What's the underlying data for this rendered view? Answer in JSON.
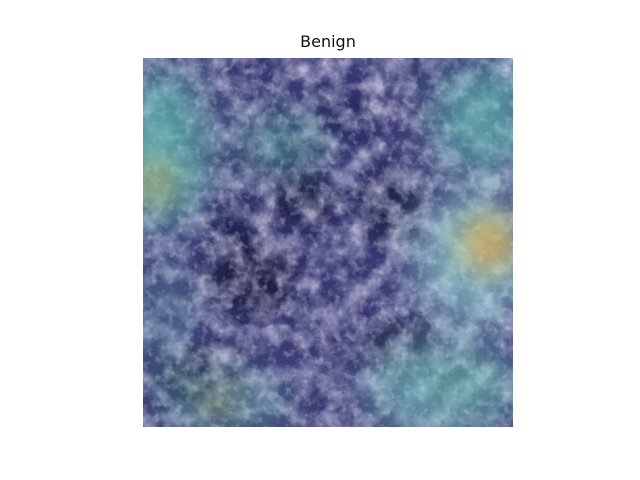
{
  "figure": {
    "title": "Benign"
  },
  "image": {
    "description_icon": "histology-heatmap-image",
    "palette": {
      "base": "#2a2b5a",
      "lavender": "#b7b4e8",
      "dark_navy": "#14163a",
      "teal": "#5fb8b0",
      "cyan": "#9ee4e0",
      "yellow": "#c9b660",
      "orange": "#c88a50"
    }
  }
}
